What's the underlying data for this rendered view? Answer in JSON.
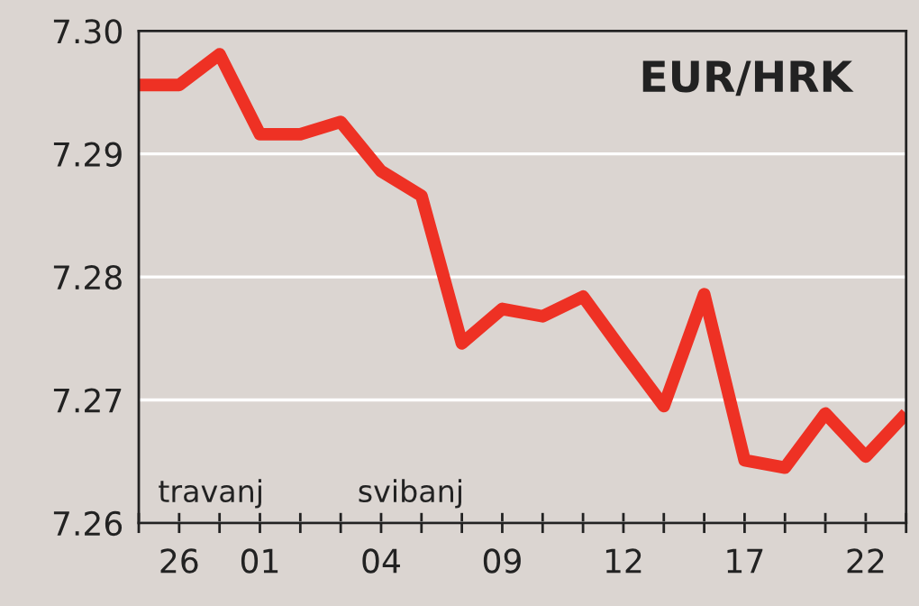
{
  "chart_data": {
    "type": "line",
    "title": "EUR/HRK",
    "categories": [
      null,
      "26",
      null,
      "01",
      null,
      null,
      "04",
      null,
      null,
      "09",
      null,
      null,
      "12",
      null,
      null,
      "17",
      null,
      null,
      "22",
      null
    ],
    "series": [
      {
        "color": "#ee3124",
        "values": [
          7.2956,
          7.2956,
          7.2981,
          7.2916,
          7.2916,
          7.2926,
          7.2886,
          7.2866,
          7.2746,
          7.2774,
          7.2768,
          7.2784,
          7.2739,
          7.2695,
          7.2786,
          7.2651,
          7.2645,
          7.2689,
          7.2654,
          7.2689
        ]
      }
    ],
    "ylim": [
      7.26,
      7.3
    ],
    "yticks": [
      {
        "value": 7.26,
        "label": "7.26"
      },
      {
        "value": 7.27,
        "label": "7.27"
      },
      {
        "value": 7.28,
        "label": "7.28"
      },
      {
        "value": 7.29,
        "label": "7.29"
      },
      {
        "value": 7.3,
        "label": "7.30"
      }
    ],
    "annotations": [
      "travanj",
      "svibanj"
    ],
    "grid": "y"
  }
}
